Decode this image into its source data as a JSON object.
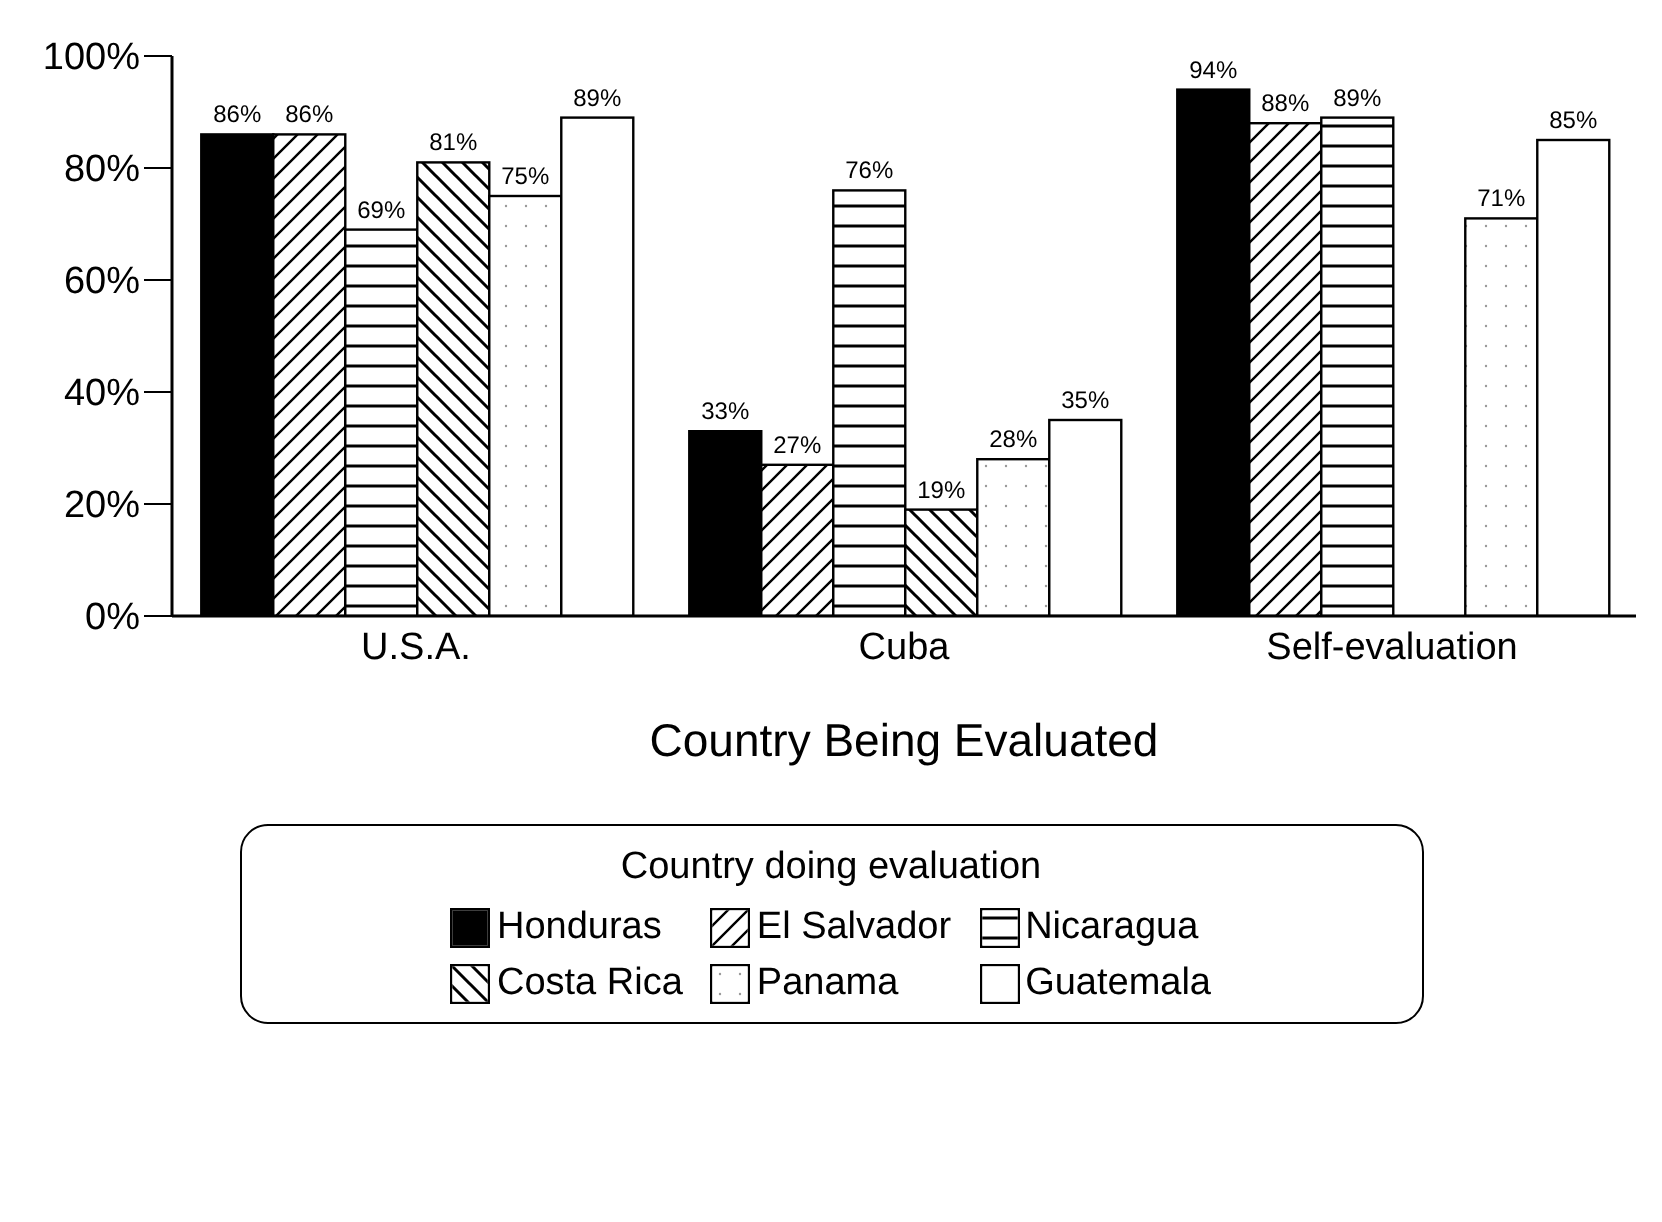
{
  "chart_data": {
    "type": "bar",
    "xlabel": "Country Being Evaluated",
    "legend_title": "Country doing evaluation",
    "legend": "bottom",
    "categories": [
      "U.S.A.",
      "Cuba",
      "Self-evaluation"
    ],
    "ylim": [
      0,
      100
    ],
    "yticks": [
      {
        "value": 0,
        "label": "0%"
      },
      {
        "value": 20,
        "label": "20%"
      },
      {
        "value": 40,
        "label": "40%"
      },
      {
        "value": 60,
        "label": "60%"
      },
      {
        "value": 80,
        "label": "80%"
      },
      {
        "value": 100,
        "label": "100%"
      }
    ],
    "grid": false,
    "series": [
      {
        "name": "Honduras",
        "color": "#000000",
        "values": [
          86,
          33,
          94
        ],
        "value_labels": [
          "86%",
          "33%",
          "94%"
        ]
      },
      {
        "name": "El Salvador",
        "color": "#ffffff",
        "values": [
          86,
          27,
          88
        ],
        "value_labels": [
          "86%",
          "27%",
          "88%"
        ]
      },
      {
        "name": "Nicaragua",
        "color": "#ffffff",
        "values": [
          69,
          76,
          89
        ],
        "value_labels": [
          "69%",
          "76%",
          "89%"
        ]
      },
      {
        "name": "Costa Rica",
        "color": "#ffffff",
        "values": [
          81,
          19,
          null
        ],
        "value_labels": [
          "81%",
          "19%",
          null
        ]
      },
      {
        "name": "Panama",
        "color": "#ffffff",
        "values": [
          75,
          28,
          71
        ],
        "value_labels": [
          "75%",
          "28%",
          "71%"
        ]
      },
      {
        "name": "Guatemala",
        "color": "#ffffff",
        "values": [
          89,
          35,
          85
        ],
        "value_labels": [
          "89%",
          "35%",
          "85%"
        ]
      }
    ]
  }
}
